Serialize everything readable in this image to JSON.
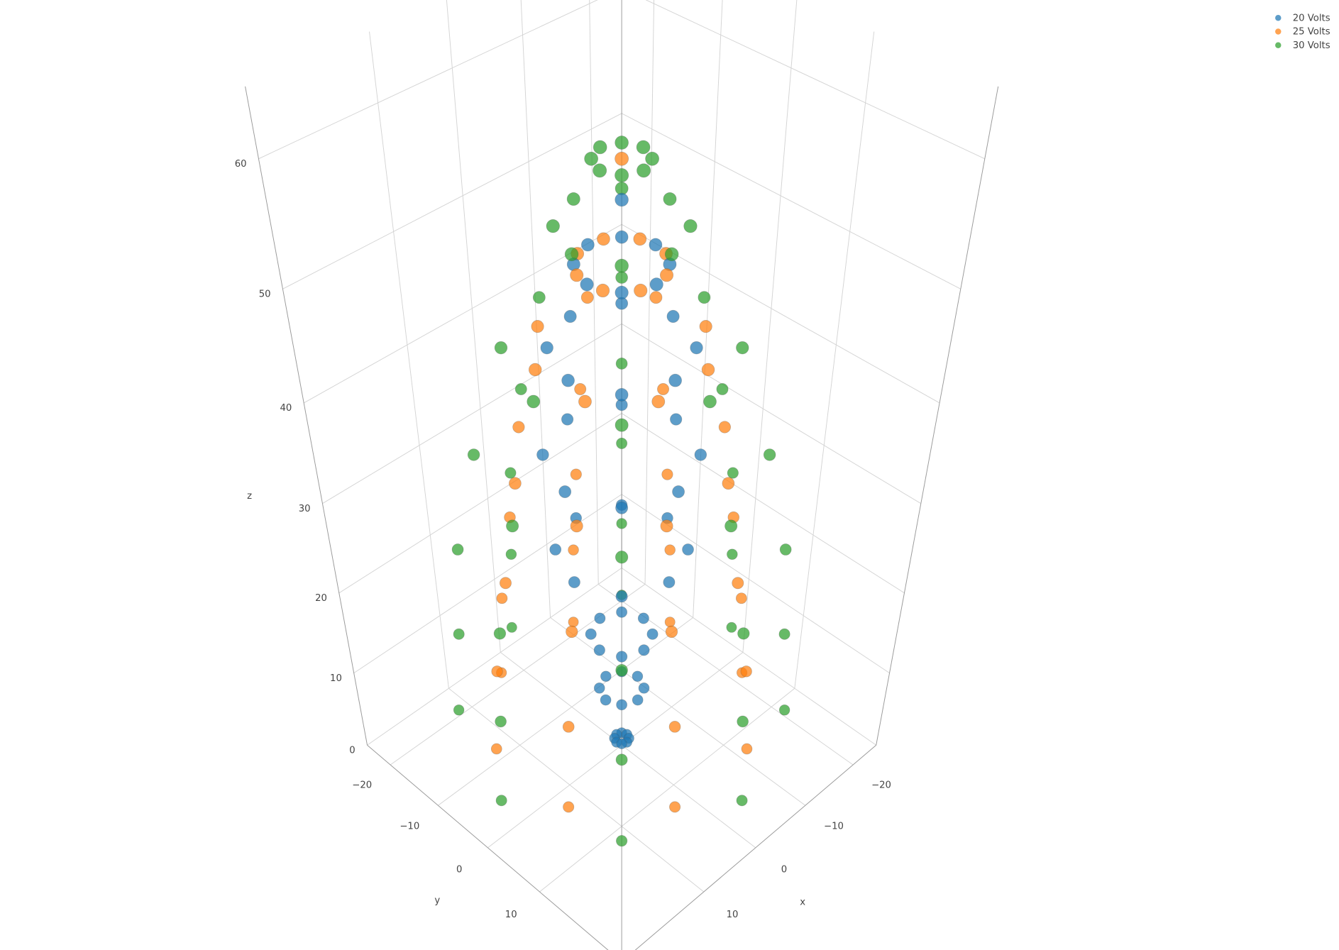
{
  "chart_data": {
    "type": "scatter3d",
    "xlabel": "x",
    "ylabel": "y",
    "zlabel": "z",
    "xlim": [
      -25,
      25
    ],
    "ylim": [
      -25,
      25
    ],
    "zlim": [
      0,
      65
    ],
    "xticks": [
      {
        "value": -20,
        "label": "−20"
      },
      {
        "value": -10,
        "label": "−10"
      },
      0,
      10
    ],
    "yticks": [
      {
        "value": -20,
        "label": "−20"
      },
      {
        "value": -10,
        "label": "−10"
      },
      0,
      10
    ],
    "zticks": [
      0,
      10,
      20,
      30,
      40,
      50,
      60
    ],
    "grid": true,
    "legend": "top-right",
    "series": [
      {
        "name": "20 Volts",
        "color": "#1f77b4",
        "x": [
          1,
          0.7,
          0,
          -0.7,
          -1,
          -0.7,
          0,
          0.7,
          3,
          2.1,
          0,
          -2.1,
          -3,
          -2.1,
          0,
          2.1,
          4,
          2.8,
          0,
          -2.8,
          -4,
          -2.8,
          0,
          2.8,
          8,
          5.7,
          0,
          -5.7,
          -8,
          -5.7,
          0,
          5.7,
          9,
          6.4,
          0,
          -6.4,
          -9,
          -6.4,
          0,
          6.4,
          8,
          5.7,
          0,
          -5.7,
          -8,
          -5.7,
          0,
          5.7,
          5,
          3.5,
          0,
          -3.5,
          -5,
          -3.5,
          0,
          3.5,
          0
        ],
        "y": [
          0,
          0.7,
          1,
          0.7,
          0,
          -0.7,
          -1,
          -0.7,
          0,
          2.1,
          3,
          2.1,
          0,
          -2.1,
          -3,
          -2.1,
          0,
          2.8,
          4,
          2.8,
          0,
          -2.8,
          -4,
          -2.8,
          0,
          5.7,
          8,
          5.7,
          0,
          -5.7,
          -8,
          -5.7,
          0,
          6.4,
          9,
          6.4,
          0,
          -6.4,
          -9,
          -6.4,
          0,
          5.7,
          8,
          5.7,
          0,
          -5.7,
          -8,
          -5.7,
          0,
          3.5,
          5,
          3.5,
          0,
          -3.5,
          -5,
          -3.5,
          0
        ],
        "z": [
          1,
          1,
          1,
          1,
          1,
          1,
          1,
          1,
          8,
          8,
          8,
          8,
          8,
          8,
          8,
          8,
          15,
          15,
          15,
          15,
          15,
          15,
          15,
          15,
          25,
          25,
          25,
          25,
          25,
          25,
          25,
          25,
          35,
          35,
          35,
          35,
          35,
          35,
          35,
          35,
          45,
          45,
          45,
          45,
          45,
          45,
          45,
          45,
          52,
          52,
          52,
          52,
          52,
          52,
          52,
          52,
          57
        ]
      },
      {
        "name": "25 Volts",
        "color": "#ff7f0e",
        "x": [
          16.6,
          6.9,
          -6.9,
          -16.6,
          -16.6,
          -6.9,
          6.9,
          16.6,
          15.7,
          6.5,
          -6.5,
          -15.7,
          -15.7,
          -6.5,
          6.5,
          15.7,
          13.9,
          5.7,
          -5.7,
          -13.9,
          -13.9,
          -5.7,
          5.7,
          13.9,
          12,
          5,
          -5,
          -12,
          -12,
          -5,
          5,
          12,
          9.2,
          3.8,
          -3.8,
          -9.2,
          -9.2,
          -3.8,
          3.8,
          9.2,
          4.6,
          1.9,
          -1.9,
          -4.6,
          -4.6,
          -1.9,
          1.9,
          4.6,
          0
        ],
        "y": [
          6.9,
          16.6,
          16.6,
          6.9,
          -6.9,
          -16.6,
          -16.6,
          -6.9,
          6.5,
          15.7,
          15.7,
          6.5,
          -6.5,
          -15.7,
          -15.7,
          -6.5,
          5.7,
          13.9,
          13.9,
          5.7,
          -5.7,
          -13.9,
          -13.9,
          -5.7,
          5,
          12,
          12,
          5,
          -5,
          -12,
          -12,
          -5,
          3.8,
          9.2,
          9.2,
          3.8,
          -3.8,
          -9.2,
          -9.2,
          -3.8,
          1.9,
          4.6,
          4.6,
          1.9,
          -1.9,
          -4.6,
          -4.6,
          -1.9,
          0
        ],
        "z": [
          5,
          5,
          5,
          5,
          5,
          5,
          5,
          5,
          15,
          15,
          15,
          15,
          15,
          15,
          15,
          15,
          25,
          25,
          25,
          25,
          25,
          25,
          25,
          25,
          35,
          35,
          35,
          35,
          35,
          35,
          35,
          35,
          45,
          45,
          45,
          45,
          45,
          45,
          45,
          45,
          52,
          52,
          52,
          52,
          52,
          52,
          52,
          52,
          60
        ]
      },
      {
        "name": "30 Volts",
        "color": "#2ca02c",
        "x": [
          22,
          15.6,
          0,
          -15.6,
          -22,
          -15.6,
          0,
          15.6,
          21,
          14.8,
          0,
          -14.8,
          -21,
          -14.8,
          0,
          14.8,
          20,
          14.1,
          0,
          -14.1,
          -20,
          -14.1,
          0,
          14.1,
          17,
          12,
          0,
          -12,
          -17,
          -12,
          0,
          12,
          13,
          9.2,
          0,
          -9.2,
          -13,
          -9.2,
          0,
          9.2,
          7,
          4.9,
          0,
          -4.9,
          -7,
          -4.9,
          0,
          4.9,
          3,
          2.1,
          0,
          -2.1,
          -3,
          -2.1,
          0,
          2.1
        ],
        "y": [
          0,
          15.6,
          22,
          15.6,
          0,
          -15.6,
          -22,
          -15.6,
          0,
          14.8,
          21,
          14.8,
          0,
          -14.8,
          -21,
          -14.8,
          0,
          14.1,
          20,
          14.1,
          0,
          -14.1,
          -20,
          -14.1,
          0,
          12,
          17,
          12,
          0,
          -12,
          -17,
          -12,
          0,
          9.2,
          13,
          9.2,
          0,
          -9.2,
          -13,
          -9.2,
          0,
          4.9,
          7,
          4.9,
          0,
          -4.9,
          -7,
          -4.9,
          0,
          2.1,
          3,
          2.1,
          0,
          -2.1,
          -3,
          -2.1
        ],
        "z": [
          5,
          5,
          5,
          5,
          5,
          5,
          5,
          5,
          15,
          15,
          15,
          15,
          15,
          15,
          15,
          15,
          25,
          25,
          25,
          25,
          25,
          25,
          25,
          25,
          35,
          35,
          35,
          35,
          35,
          35,
          35,
          35,
          45,
          45,
          45,
          45,
          45,
          45,
          45,
          45,
          55,
          55,
          55,
          55,
          55,
          55,
          55,
          55,
          60,
          60,
          60,
          60,
          60,
          60,
          60,
          60
        ]
      }
    ]
  }
}
